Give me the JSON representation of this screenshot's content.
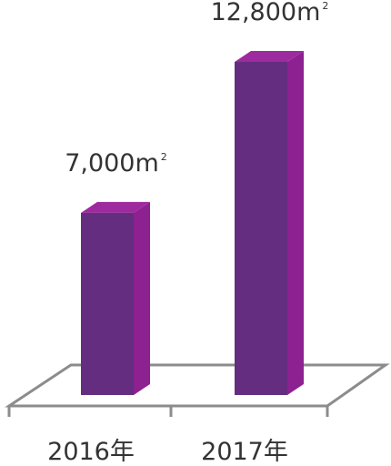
{
  "chart_data": {
    "type": "bar",
    "categories": [
      "2016年",
      "2017年"
    ],
    "values": [
      7000,
      12800
    ],
    "data_labels": [
      {
        "text": "7,000m",
        "sup": "2"
      },
      {
        "text": "12,800m",
        "sup": "2"
      }
    ],
    "title": "",
    "xlabel": "",
    "ylabel": "",
    "grid": false,
    "legend": "none",
    "colors": {
      "front": "#642d7f",
      "side": "#8d2191",
      "top": "#9e2a9f",
      "floor": "#8c8c8c"
    }
  }
}
